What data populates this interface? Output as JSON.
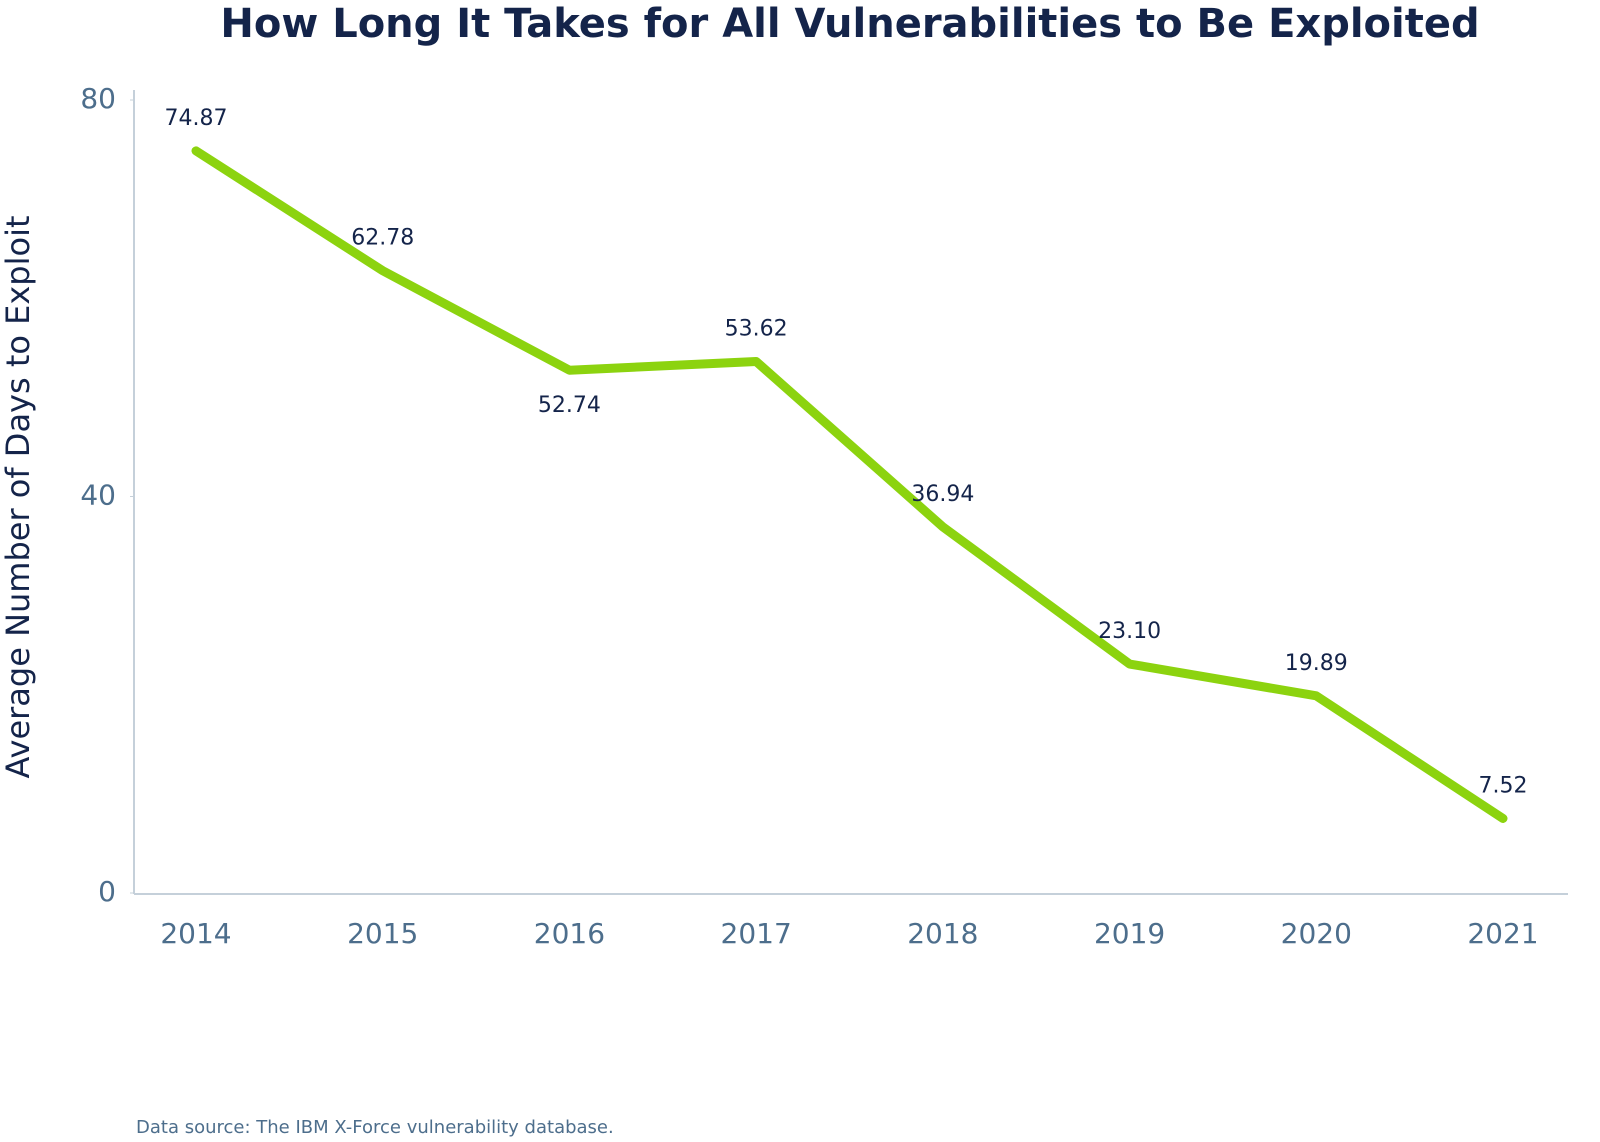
{
  "chart_data": {
    "type": "line",
    "title": "How Long It Takes for All Vulnerabilities to Be Exploited",
    "y_label": "Average Number of Days to Exploit",
    "source": "Data source: The IBM X-Force vulnerability database.",
    "categories": [
      "2014",
      "2015",
      "2016",
      "2017",
      "2018",
      "2019",
      "2020",
      "2021"
    ],
    "values": [
      74.87,
      62.78,
      52.74,
      53.62,
      36.94,
      23.1,
      19.89,
      7.52
    ],
    "value_labels": [
      "74.87",
      "62.78",
      "52.74",
      "53.62",
      "36.94",
      "23.10",
      "19.89",
      "7.52"
    ],
    "color": "#8cd30f",
    "ylim": [
      0,
      80
    ],
    "yticks": [
      0,
      40,
      80
    ],
    "grid": false
  }
}
